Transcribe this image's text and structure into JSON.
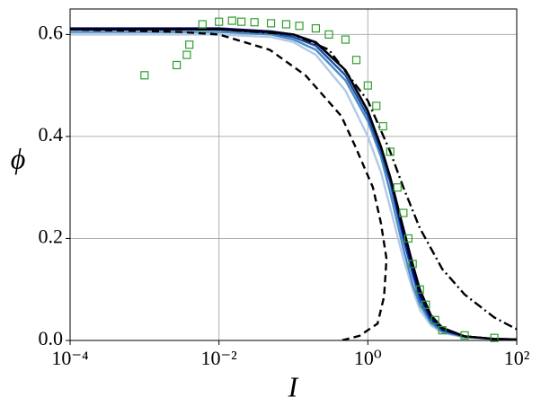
{
  "chart_data": {
    "type": "line",
    "x_label": "I",
    "y_label": "ϕ",
    "xscale": "log",
    "grid": true,
    "xlim": [
      0.0001,
      100
    ],
    "ylim": [
      0,
      0.65
    ],
    "xticks": [
      {
        "value": 0.0001,
        "label": "10⁻⁴"
      },
      {
        "value": 0.01,
        "label": "10⁻²"
      },
      {
        "value": 1,
        "label": "10⁰"
      },
      {
        "value": 100,
        "label": "10²"
      }
    ],
    "yticks": [
      {
        "value": 0,
        "label": "0.0"
      },
      0.2,
      0.4,
      0.6
    ],
    "series": [
      {
        "color": "#b3c9e6",
        "linestyle": "solid",
        "x": [
          0.0001,
          0.001,
          0.01,
          0.05,
          0.1,
          0.2,
          0.5,
          1,
          1.5,
          2,
          3,
          4,
          5,
          7,
          10,
          20,
          50,
          100
        ],
        "values": [
          0.6,
          0.6,
          0.6,
          0.595,
          0.585,
          0.56,
          0.49,
          0.4,
          0.33,
          0.26,
          0.16,
          0.1,
          0.06,
          0.03,
          0.015,
          0.006,
          0.003,
          0.002
        ]
      },
      {
        "color": "#4a8cc4",
        "linestyle": "solid",
        "x": [
          0.0001,
          0.001,
          0.01,
          0.05,
          0.1,
          0.2,
          0.5,
          1,
          1.5,
          2,
          3,
          4,
          5,
          7,
          10,
          20,
          50,
          100
        ],
        "values": [
          0.605,
          0.605,
          0.605,
          0.6,
          0.59,
          0.57,
          0.51,
          0.43,
          0.36,
          0.29,
          0.18,
          0.11,
          0.07,
          0.035,
          0.017,
          0.007,
          0.003,
          0.002
        ]
      },
      {
        "color": "#1a4fa8",
        "linestyle": "solid",
        "x": [
          0.0001,
          0.001,
          0.01,
          0.05,
          0.1,
          0.2,
          0.5,
          1,
          1.5,
          2,
          3,
          4,
          5,
          7,
          10,
          20,
          50,
          100
        ],
        "values": [
          0.61,
          0.61,
          0.61,
          0.603,
          0.595,
          0.578,
          0.52,
          0.44,
          0.37,
          0.31,
          0.2,
          0.13,
          0.08,
          0.04,
          0.02,
          0.008,
          0.003,
          0.002
        ]
      },
      {
        "color": "#00008b",
        "linestyle": "solid",
        "x": [
          0.0001,
          0.001,
          0.01,
          0.05,
          0.1,
          0.2,
          0.5,
          1,
          1.5,
          2,
          3,
          4,
          5,
          7,
          10,
          20,
          50,
          100
        ],
        "values": [
          0.612,
          0.612,
          0.612,
          0.606,
          0.6,
          0.584,
          0.53,
          0.45,
          0.38,
          0.32,
          0.21,
          0.14,
          0.09,
          0.045,
          0.022,
          0.008,
          0.003,
          0.002
        ]
      },
      {
        "color": "#000000",
        "linestyle": "solid",
        "x": [
          0.0001,
          0.001,
          0.01,
          0.05,
          0.1,
          0.2,
          0.5,
          1,
          1.5,
          2,
          3,
          4,
          5,
          7,
          10,
          20,
          50,
          100
        ],
        "values": [
          0.61,
          0.61,
          0.61,
          0.605,
          0.6,
          0.585,
          0.53,
          0.45,
          0.38,
          0.32,
          0.22,
          0.15,
          0.1,
          0.05,
          0.025,
          0.008,
          0.003,
          0.002
        ]
      },
      {
        "color": "#000000",
        "linestyle": "dashed",
        "x": [
          0.0001,
          0.003,
          0.01,
          0.048,
          0.145,
          0.44,
          0.68,
          1.17,
          1.5,
          1.78,
          1.65,
          1.35,
          0.77,
          0.44
        ],
        "values": [
          0.61,
          0.605,
          0.6,
          0.57,
          0.52,
          0.44,
          0.38,
          0.3,
          0.23,
          0.16,
          0.086,
          0.033,
          0.009,
          0
        ]
      },
      {
        "color": "#000000",
        "linestyle": "dashdot",
        "x": [
          0.0001,
          0.01,
          0.1,
          0.3,
          1,
          2,
          3,
          5,
          10,
          20,
          50,
          100
        ],
        "values": [
          0.61,
          0.61,
          0.6,
          0.57,
          0.47,
          0.37,
          0.3,
          0.22,
          0.14,
          0.09,
          0.045,
          0.022
        ]
      },
      {
        "color": "#2ca02c",
        "marker": "square",
        "x": [
          0.001,
          0.0027,
          0.0037,
          0.004,
          0.006,
          0.01,
          0.015,
          0.02,
          0.03,
          0.05,
          0.08,
          0.12,
          0.2,
          0.3,
          0.5,
          0.7,
          1,
          1.3,
          1.6,
          2,
          2.5,
          3,
          3.5,
          4,
          5,
          6,
          8,
          10,
          20,
          50
        ],
        "values": [
          0.52,
          0.54,
          0.56,
          0.58,
          0.62,
          0.625,
          0.627,
          0.625,
          0.624,
          0.622,
          0.62,
          0.617,
          0.612,
          0.6,
          0.59,
          0.55,
          0.5,
          0.46,
          0.42,
          0.37,
          0.3,
          0.25,
          0.2,
          0.15,
          0.1,
          0.07,
          0.04,
          0.02,
          0.01,
          0.005
        ]
      }
    ]
  }
}
